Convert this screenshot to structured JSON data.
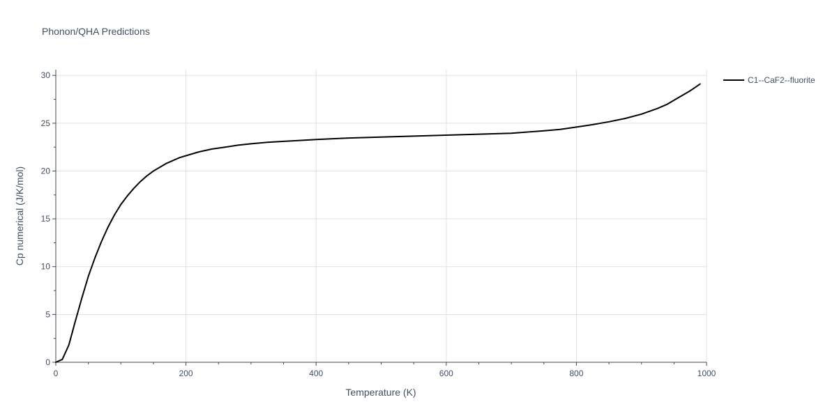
{
  "chart_data": {
    "type": "line",
    "title": "Phonon/QHA Predictions",
    "xlabel": "Temperature (K)",
    "ylabel": "Cp numerical (J/K/mol)",
    "xlim": [
      0,
      1000
    ],
    "ylim": [
      0,
      30.6
    ],
    "x_ticks": [
      0,
      200,
      400,
      600,
      800,
      1000
    ],
    "y_ticks": [
      0,
      5,
      10,
      15,
      20,
      25,
      30
    ],
    "grid": true,
    "legend_position": "top-right",
    "series": [
      {
        "name": "C1--CaF2--fluorite",
        "color": "#000000",
        "x": [
          0,
          10,
          20,
          30,
          40,
          50,
          60,
          70,
          80,
          90,
          100,
          110,
          120,
          130,
          140,
          150,
          160,
          170,
          180,
          190,
          200,
          220,
          240,
          260,
          280,
          300,
          325,
          350,
          375,
          400,
          450,
          500,
          550,
          600,
          650,
          700,
          750,
          775,
          800,
          825,
          850,
          875,
          900,
          925,
          940,
          950,
          960,
          975,
          990
        ],
        "y": [
          0,
          0.3,
          1.8,
          4.3,
          6.7,
          9.0,
          10.9,
          12.6,
          14.1,
          15.4,
          16.5,
          17.4,
          18.2,
          18.9,
          19.5,
          20.0,
          20.4,
          20.8,
          21.1,
          21.4,
          21.6,
          22.0,
          22.3,
          22.5,
          22.7,
          22.85,
          23.0,
          23.1,
          23.2,
          23.3,
          23.45,
          23.55,
          23.65,
          23.75,
          23.85,
          23.95,
          24.2,
          24.35,
          24.6,
          24.85,
          25.15,
          25.5,
          25.95,
          26.55,
          27.0,
          27.4,
          27.8,
          28.4,
          29.1
        ]
      }
    ]
  }
}
